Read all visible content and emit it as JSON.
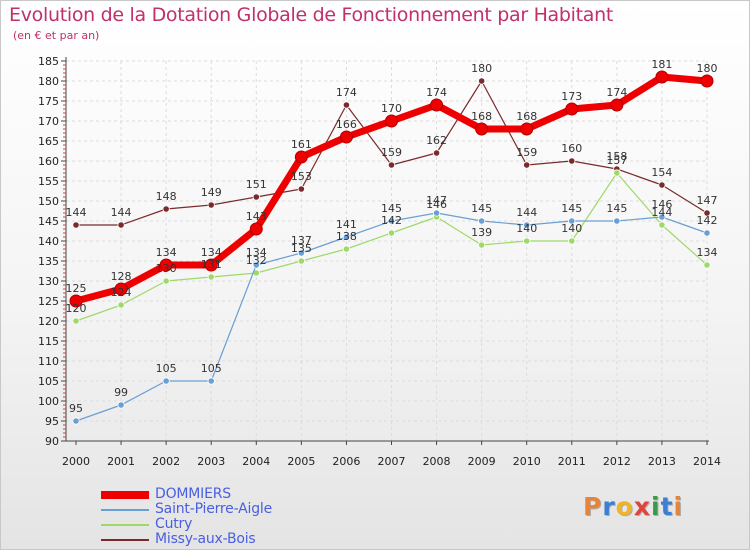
{
  "header": {
    "title": "Evolution de la Dotation Globale de Fonctionnement par Habitant",
    "subtitle": "(en € et par an)"
  },
  "logo": {
    "text": "Proxiti",
    "letters": [
      "P",
      "r",
      "o",
      "x",
      "i",
      "t",
      "i"
    ],
    "colors": [
      "#e8843a",
      "#3a7fd0",
      "#f0b32a",
      "#e0453a",
      "#3a9a4a",
      "#3a7fd0",
      "#e8843a"
    ]
  },
  "chart_data": {
    "type": "line",
    "title": "Evolution de la Dotation Globale de Fonctionnement par Habitant",
    "subtitle": "(en € et par an)",
    "xlabel": "",
    "ylabel": "",
    "x": [
      "2000",
      "2001",
      "2002",
      "2003",
      "2004",
      "2005",
      "2006",
      "2007",
      "2008",
      "2009",
      "2010",
      "2011",
      "2012",
      "2013",
      "2014"
    ],
    "ylim": [
      90,
      185
    ],
    "yticks": [
      90,
      95,
      100,
      105,
      110,
      115,
      120,
      125,
      130,
      135,
      140,
      145,
      150,
      155,
      160,
      165,
      170,
      175,
      180,
      185
    ],
    "grid": true,
    "legend_position": "bottom-left",
    "series": [
      {
        "name": "DOMMIERS",
        "color": "#ee0000",
        "values": [
          125,
          128,
          134,
          134,
          143,
          161,
          166,
          170,
          174,
          168,
          168,
          173,
          174,
          181,
          180
        ]
      },
      {
        "name": "Saint-Pierre-Aigle",
        "color": "#6a9fd4",
        "values": [
          95,
          99,
          105,
          105,
          134,
          137,
          141,
          145,
          147,
          145,
          144,
          145,
          145,
          146,
          142
        ]
      },
      {
        "name": "Cutry",
        "color": "#9ed96a",
        "values": [
          120,
          124,
          130,
          131,
          132,
          135,
          138,
          142,
          146,
          139,
          140,
          140,
          157,
          144,
          134
        ]
      },
      {
        "name": "Missy-aux-Bois",
        "color": "#7a2a2a",
        "values": [
          144,
          144,
          148,
          149,
          151,
          153,
          174,
          159,
          162,
          180,
          159,
          160,
          158,
          154,
          147
        ]
      }
    ]
  }
}
